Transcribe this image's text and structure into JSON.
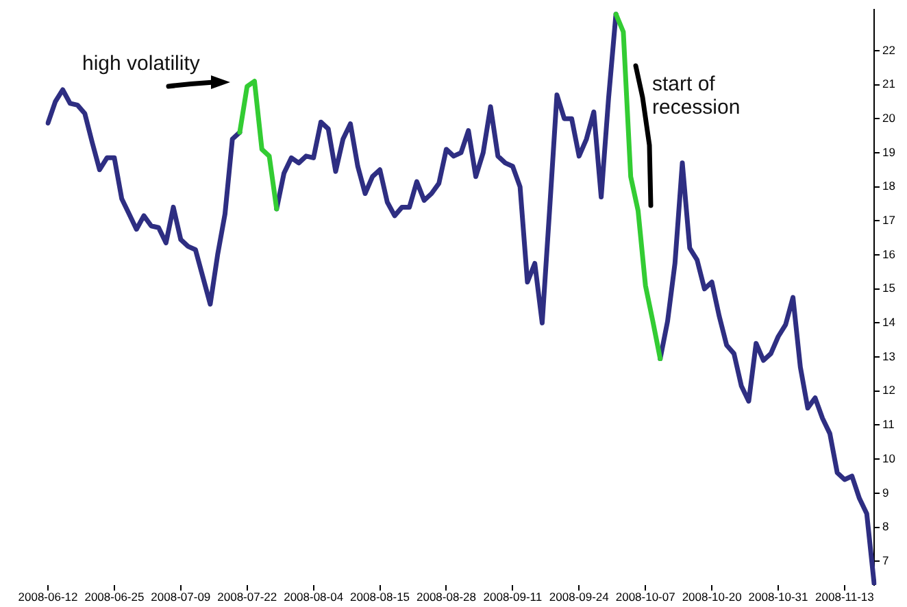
{
  "chart_data": {
    "type": "line",
    "categories": [
      "2008-06-12",
      null,
      null,
      null,
      null,
      null,
      null,
      null,
      null,
      "2008-06-25",
      null,
      null,
      null,
      null,
      null,
      null,
      null,
      null,
      "2008-07-09",
      null,
      null,
      null,
      null,
      null,
      null,
      null,
      null,
      "2008-07-22",
      null,
      null,
      null,
      null,
      null,
      null,
      null,
      null,
      "2008-08-04",
      null,
      null,
      null,
      null,
      null,
      null,
      null,
      null,
      "2008-08-15",
      null,
      null,
      null,
      null,
      null,
      null,
      null,
      null,
      "2008-08-28",
      null,
      null,
      null,
      null,
      null,
      null,
      null,
      null,
      "2008-09-11",
      null,
      null,
      null,
      null,
      null,
      null,
      null,
      null,
      "2008-09-24",
      null,
      null,
      null,
      null,
      null,
      null,
      null,
      null,
      "2008-10-07",
      null,
      null,
      null,
      null,
      null,
      null,
      null,
      null,
      "2008-10-20",
      null,
      null,
      null,
      null,
      null,
      null,
      null,
      null,
      "2008-10-31",
      null,
      null,
      null,
      null,
      null,
      null,
      null,
      null,
      "2008-11-13",
      null,
      null,
      null,
      null
    ],
    "series": [
      {
        "color": "#2e2e82",
        "values": [
          19.87,
          20.5,
          20.85,
          20.45,
          20.4,
          20.15,
          19.3,
          18.5,
          18.85,
          18.85,
          17.65,
          17.2,
          16.75,
          17.15,
          16.85,
          16.8,
          16.35,
          17.4,
          16.45,
          16.25,
          16.15,
          15.35,
          14.55,
          16.0,
          17.2,
          19.4,
          19.6,
          null,
          null,
          null,
          null,
          17.35,
          18.4,
          18.85,
          18.7,
          18.9,
          18.85,
          19.9,
          19.7,
          18.45,
          19.4,
          19.85,
          18.6,
          17.8,
          18.3,
          18.5,
          17.55,
          17.15,
          17.4,
          17.4,
          18.15,
          17.6,
          17.8,
          18.1,
          19.1,
          18.9,
          19.0,
          19.65,
          18.3,
          19.0,
          20.35,
          18.9,
          18.7,
          18.6,
          18.0,
          15.2,
          15.75,
          14.0,
          17.3,
          20.7,
          20.0,
          20.0,
          18.9,
          19.4,
          20.2,
          17.7,
          20.6,
          23.07,
          null,
          null,
          null,
          null,
          null,
          12.95,
          14.05,
          15.75,
          18.7,
          16.2,
          15.85,
          15.0,
          15.2,
          14.2,
          13.35,
          13.1,
          12.15,
          11.7,
          13.4,
          12.9,
          13.1,
          13.6,
          13.95,
          14.75,
          12.7,
          11.5,
          11.8,
          11.2,
          10.75,
          9.6,
          9.4,
          9.5,
          8.85,
          8.4,
          6.35
        ]
      },
      {
        "color": "#33cc33",
        "values": [
          null,
          null,
          null,
          null,
          null,
          null,
          null,
          null,
          null,
          null,
          null,
          null,
          null,
          null,
          null,
          null,
          null,
          null,
          null,
          null,
          null,
          null,
          null,
          null,
          null,
          null,
          19.6,
          20.95,
          21.1,
          19.1,
          18.9,
          17.35,
          null,
          null,
          null,
          null,
          null,
          null,
          null,
          null,
          null,
          null,
          null,
          null,
          null,
          null,
          null,
          null,
          null,
          null,
          null,
          null,
          null,
          null,
          null,
          null,
          null,
          null,
          null,
          null,
          null,
          null,
          null,
          null,
          null,
          null,
          null,
          null,
          null,
          null,
          null,
          null,
          null,
          null,
          null,
          null,
          null,
          23.07,
          22.55,
          18.3,
          17.3,
          15.1,
          14.05,
          12.95,
          null,
          null,
          null,
          null,
          null,
          null,
          null,
          null,
          null,
          null,
          null,
          null,
          null,
          null,
          null,
          null,
          null,
          null,
          null,
          null,
          null,
          null,
          null,
          null,
          null,
          null,
          null,
          null,
          null
        ]
      }
    ],
    "ylim": [
      6.3,
      23.2
    ],
    "yticks": [
      7,
      8,
      9,
      10,
      11,
      12,
      13,
      14,
      15,
      16,
      17,
      18,
      19,
      20,
      21,
      22
    ],
    "grid": false,
    "legend": false,
    "marker": "none",
    "line_style": "solid",
    "annotations": [
      "high volatility",
      "start of recession"
    ]
  }
}
